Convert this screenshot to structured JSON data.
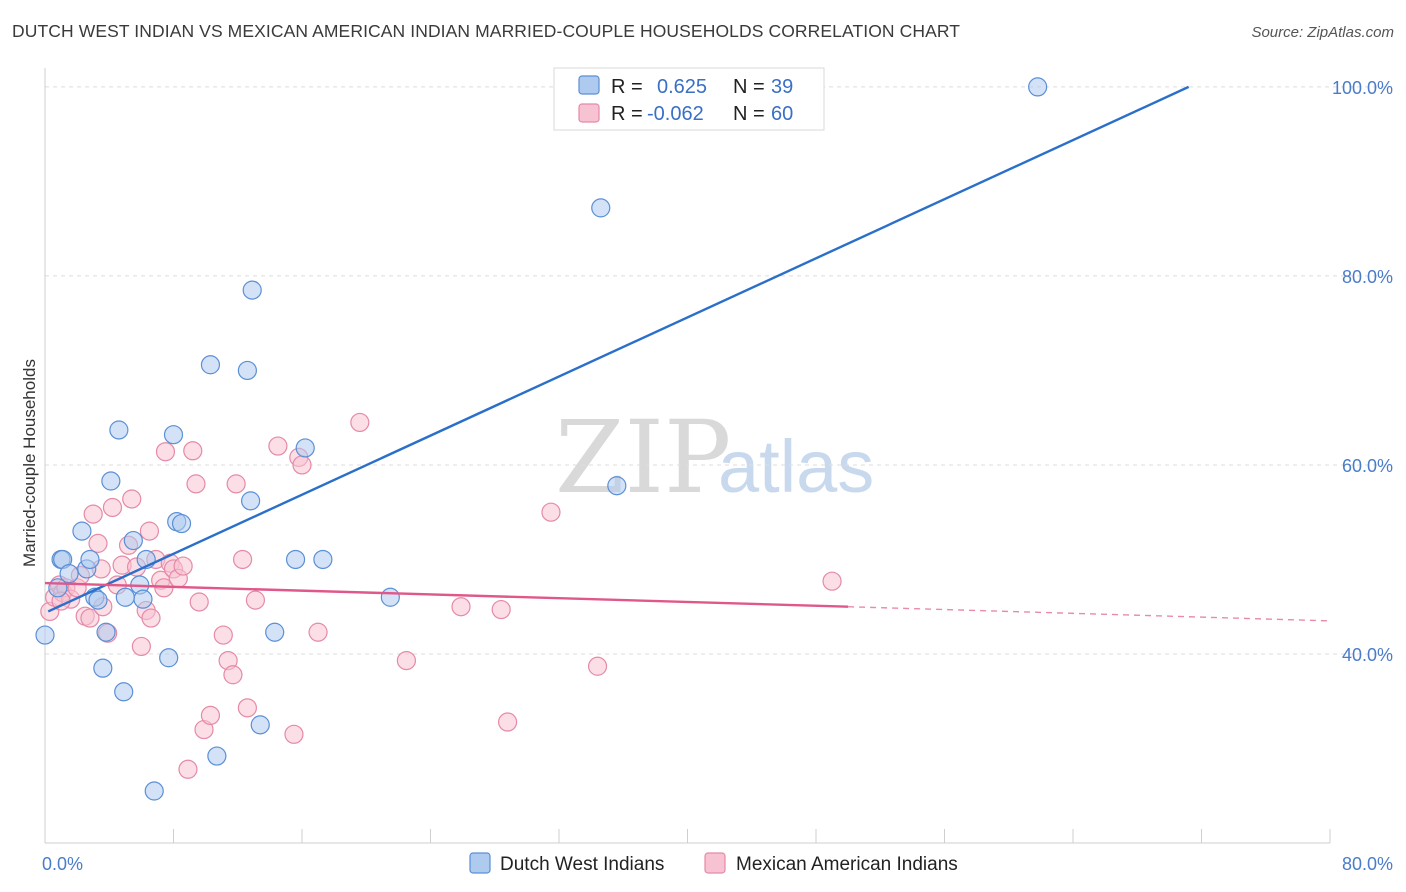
{
  "title": "DUTCH WEST INDIAN VS MEXICAN AMERICAN INDIAN MARRIED-COUPLE HOUSEHOLDS CORRELATION CHART",
  "source": "Source: ZipAtlas.com",
  "watermark": {
    "zip": "ZIP",
    "atlas": "atlas"
  },
  "colors": {
    "blue_fill": "#aecbef",
    "blue_stroke": "#5b8fd6",
    "blue_line": "#2a6fc9",
    "pink_fill": "#f7c2d2",
    "pink_stroke": "#e58aa7",
    "pink_line": "#e0588a",
    "grid": "#dddddd",
    "tick_text": "#4a7cc9"
  },
  "legend": {
    "rows": [
      {
        "r_label": "R =",
        "r_value": "0.625",
        "n_label": "N =",
        "n_value": "39"
      },
      {
        "r_label": "R =",
        "r_value": "-0.062",
        "n_label": "N =",
        "n_value": "60"
      }
    ]
  },
  "chart_data": {
    "type": "scatter",
    "ylabel": "Married-couple Households",
    "xlim": [
      0,
      80
    ],
    "ylim": [
      20,
      102
    ],
    "x_tick_labels": [
      {
        "value": 0,
        "label": "0.0%"
      },
      {
        "value": 80,
        "label": "80.0%"
      }
    ],
    "y_tick_labels": [
      {
        "value": 40,
        "label": "40.0%"
      },
      {
        "value": 60,
        "label": "60.0%"
      },
      {
        "value": 80,
        "label": "80.0%"
      },
      {
        "value": 100,
        "label": "100.0%"
      }
    ],
    "x_minor_ticks": [
      8,
      16,
      24,
      32,
      40,
      48,
      56,
      64,
      72,
      80
    ],
    "series": [
      {
        "name": "Dutch West Indians",
        "color": "#aecbef",
        "trend": {
          "x1": 0.2,
          "y1": 44.5,
          "x2": 71.2,
          "y2": 100.0,
          "dash_to": null
        },
        "points": [
          [
            0.0,
            42.0
          ],
          [
            0.8,
            47.0
          ],
          [
            1.0,
            50.0
          ],
          [
            1.1,
            50.0
          ],
          [
            1.5,
            48.5
          ],
          [
            2.3,
            53.0
          ],
          [
            2.6,
            49.0
          ],
          [
            2.8,
            50.0
          ],
          [
            3.1,
            46.0
          ],
          [
            3.3,
            45.7
          ],
          [
            3.6,
            38.5
          ],
          [
            3.8,
            42.3
          ],
          [
            4.1,
            58.3
          ],
          [
            4.6,
            63.7
          ],
          [
            4.9,
            36.0
          ],
          [
            5.5,
            52.0
          ],
          [
            5.9,
            47.3
          ],
          [
            6.1,
            45.8
          ],
          [
            6.3,
            50.0
          ],
          [
            6.8,
            25.5
          ],
          [
            7.7,
            39.6
          ],
          [
            8.0,
            63.2
          ],
          [
            8.2,
            54.0
          ],
          [
            8.5,
            53.8
          ],
          [
            10.3,
            70.6
          ],
          [
            10.7,
            29.2
          ],
          [
            12.6,
            70.0
          ],
          [
            12.8,
            56.2
          ],
          [
            12.9,
            78.5
          ],
          [
            13.4,
            32.5
          ],
          [
            14.3,
            42.3
          ],
          [
            16.2,
            61.8
          ],
          [
            15.6,
            50.0
          ],
          [
            17.3,
            50.0
          ],
          [
            21.5,
            46.0
          ],
          [
            34.6,
            87.2
          ],
          [
            35.6,
            57.8
          ],
          [
            61.8,
            100.0
          ],
          [
            5.0,
            46.0
          ]
        ]
      },
      {
        "name": "Mexican American Indians",
        "color": "#f7c2d2",
        "trend": {
          "x1": 0.0,
          "y1": 47.5,
          "x2": 50.0,
          "y2": 45.0,
          "dash_to": [
            80.0,
            43.5
          ]
        },
        "points": [
          [
            0.3,
            44.5
          ],
          [
            0.6,
            46.0
          ],
          [
            0.9,
            47.3
          ],
          [
            1.1,
            46.5
          ],
          [
            1.3,
            47.0
          ],
          [
            1.6,
            45.8
          ],
          [
            2.0,
            47.0
          ],
          [
            2.2,
            48.3
          ],
          [
            2.5,
            44.0
          ],
          [
            2.8,
            43.8
          ],
          [
            3.0,
            54.8
          ],
          [
            3.3,
            51.7
          ],
          [
            3.6,
            45.0
          ],
          [
            3.9,
            42.2
          ],
          [
            4.2,
            55.5
          ],
          [
            4.5,
            47.3
          ],
          [
            4.8,
            49.4
          ],
          [
            5.2,
            51.5
          ],
          [
            5.4,
            56.4
          ],
          [
            5.7,
            49.2
          ],
          [
            6.0,
            40.8
          ],
          [
            6.3,
            44.6
          ],
          [
            6.6,
            43.8
          ],
          [
            6.9,
            50.0
          ],
          [
            7.2,
            47.8
          ],
          [
            7.4,
            47.0
          ],
          [
            7.5,
            61.4
          ],
          [
            7.8,
            49.6
          ],
          [
            8.0,
            49.0
          ],
          [
            8.3,
            48.0
          ],
          [
            8.6,
            49.3
          ],
          [
            8.9,
            27.8
          ],
          [
            9.2,
            61.5
          ],
          [
            9.4,
            58.0
          ],
          [
            9.6,
            45.5
          ],
          [
            9.9,
            32.0
          ],
          [
            10.3,
            33.5
          ],
          [
            11.1,
            42.0
          ],
          [
            11.4,
            39.3
          ],
          [
            11.7,
            37.8
          ],
          [
            11.9,
            58.0
          ],
          [
            12.3,
            50.0
          ],
          [
            12.6,
            34.3
          ],
          [
            13.1,
            45.7
          ],
          [
            14.5,
            62.0
          ],
          [
            15.5,
            31.5
          ],
          [
            15.8,
            60.8
          ],
          [
            16.0,
            60.0
          ],
          [
            17.0,
            42.3
          ],
          [
            19.6,
            64.5
          ],
          [
            22.5,
            39.3
          ],
          [
            25.9,
            45.0
          ],
          [
            28.4,
            44.7
          ],
          [
            28.8,
            32.8
          ],
          [
            31.5,
            55.0
          ],
          [
            34.4,
            38.7
          ],
          [
            49.0,
            47.7
          ],
          [
            1.0,
            45.6
          ],
          [
            3.5,
            49.0
          ],
          [
            6.5,
            53.0
          ]
        ]
      }
    ]
  }
}
